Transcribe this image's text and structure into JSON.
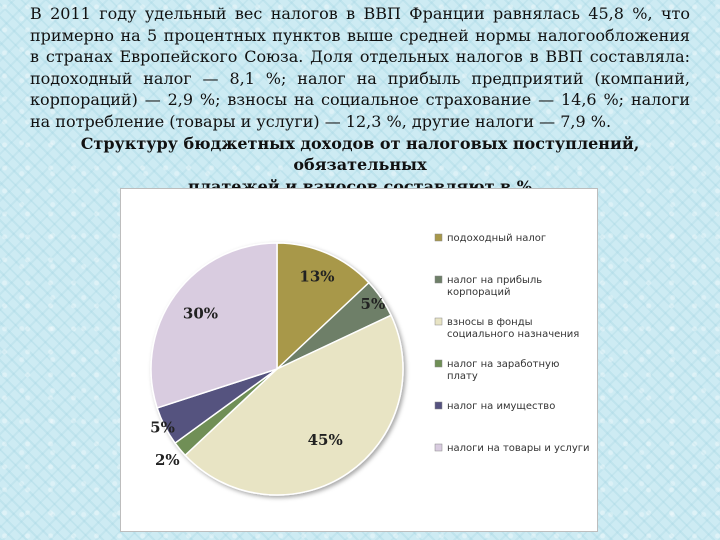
{
  "paragraph": "В 2011 году удельный вес налогов в ВВП Франции равнялась 45,8 %, что примерно на 5 процентных пунктов выше средней нормы налогообложения в странах Европейского Союза. Доля отдельных налогов в ВВП составляла: подоходный налог — 8,1 %; налог на прибыль предприятий (компаний, корпораций) — 2,9 %; взносы на социальное страхование — 14,6 %; налоги на потребление (товары и услуги) — 12,3 %, другие налоги — 7,9 %.",
  "heading": {
    "line1": "Структуру бюджетных доходов от налоговых поступлений, обязательных",
    "line2": "платежей и взносов составляют в %"
  },
  "chart_data": {
    "type": "pie",
    "slices": [
      {
        "name": "подоходный налог",
        "value": 13,
        "label": "13%",
        "color": "#a8984a"
      },
      {
        "name": "налог на прибыль корпораций",
        "legend_lines": [
          "налог на прибыль",
          "корпораций"
        ],
        "value": 5,
        "label": "5%",
        "color": "#6e7f68"
      },
      {
        "name": "взносы в фонды социального назначения",
        "legend_lines": [
          "взносы в фонды",
          "социального назначения"
        ],
        "value": 45,
        "label": "45%",
        "color": "#e8e4c4"
      },
      {
        "name": "налог на заработную плату",
        "legend_lines": [
          "налог на заработную",
          "плату"
        ],
        "value": 2,
        "label": "2%",
        "color": "#6f8f56"
      },
      {
        "name": "налог на имущество",
        "value": 5,
        "label": "5%",
        "color": "#55527f"
      },
      {
        "name": "налоги на товары и услуги",
        "value": 30,
        "label": "30%",
        "color": "#d9cce0"
      }
    ],
    "legend_position": "right"
  }
}
